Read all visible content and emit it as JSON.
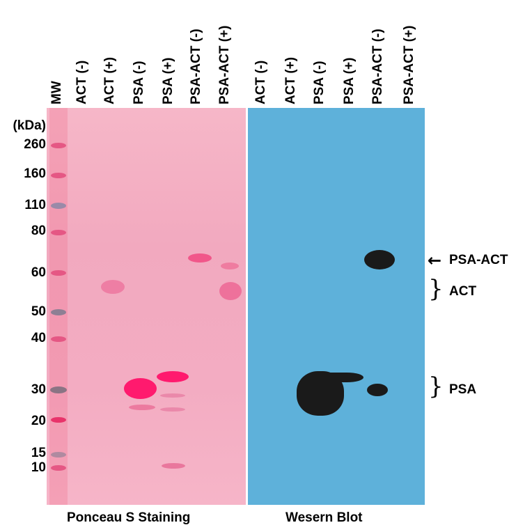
{
  "lane_headers": {
    "mw": "MW",
    "p1": "ACT (-)",
    "p2": "ACT (+)",
    "p3": "PSA (-)",
    "p4": "PSA (+)",
    "p5": "PSA-ACT (-)",
    "p6": "PSA-ACT (+)",
    "w1": "ACT (-)",
    "w2": "ACT (+)",
    "w3": "PSA (-)",
    "w4": "PSA (+)",
    "w5": "PSA-ACT (-)",
    "w6": "PSA-ACT (+)"
  },
  "markers": {
    "unit": "(kDa)",
    "m260": "260",
    "m160": "160",
    "m110": "110",
    "m80": "80",
    "m60": "60",
    "m50": "50",
    "m40": "40",
    "m30": "30",
    "m20": "20",
    "m15": "15",
    "m10": "10"
  },
  "annotations": {
    "psa_act": "PSA-ACT",
    "act": "ACT",
    "psa": "PSA",
    "arrow": "←"
  },
  "footers": {
    "ponceau": "Ponceau S Staining",
    "western": "Wesern Blot"
  },
  "colors": {
    "ponceau_bg": "#f3adc2",
    "western_bg": "#5eb1da",
    "ponceau_band": "#ff1a6e",
    "western_band": "#1a1a1a",
    "marker_band": "#e8336a"
  }
}
